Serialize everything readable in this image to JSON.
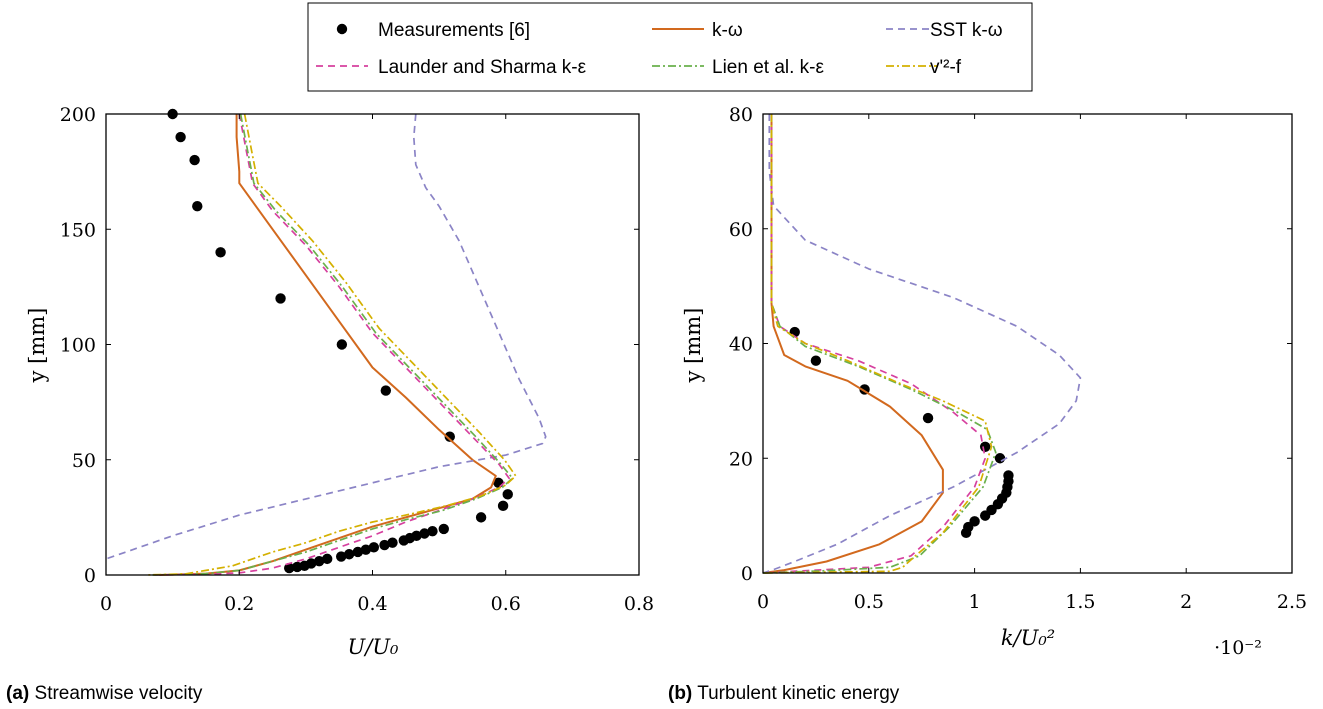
{
  "legend": {
    "entries": [
      {
        "label": "Measurements [6]",
        "style": "marker",
        "color": "#000000"
      },
      {
        "label": "k-ω",
        "style": "solid",
        "color": "#d2691e"
      },
      {
        "label": "SST k-ω",
        "style": "dashed",
        "color": "#8b84c6"
      },
      {
        "label": "Launder and Sharma k-ε",
        "style": "dashed",
        "color": "#d6409f"
      },
      {
        "label": "Lien et al. k-ε",
        "style": "dashdot",
        "color": "#6ab04c"
      },
      {
        "label": "v'²-f",
        "style": "dashdot",
        "color": "#d4b000"
      }
    ]
  },
  "captions": {
    "a": {
      "tag": "(a)",
      "text": "Streamwise velocity"
    },
    "b": {
      "tag": "(b)",
      "text": "Turbulent kinetic energy"
    }
  },
  "chart_data": [
    {
      "type": "line",
      "id": "a",
      "xlabel": "U/U₀",
      "ylabel": "y [mm]",
      "xlim": [
        0,
        0.8
      ],
      "ylim": [
        0,
        200
      ],
      "xticks": [
        "0",
        "0.2",
        "0.4",
        "0.6",
        "0.8"
      ],
      "yticks": [
        "0",
        "50",
        "100",
        "150",
        "200"
      ],
      "grid": false,
      "series": [
        {
          "name": "Measurements [6]",
          "kind": "marker",
          "color": "#000000",
          "points": [
            [
              0.1,
              200
            ],
            [
              0.112,
              190
            ],
            [
              0.133,
              180
            ],
            [
              0.137,
              160
            ],
            [
              0.172,
              140
            ],
            [
              0.262,
              120
            ],
            [
              0.354,
              100
            ],
            [
              0.42,
              80
            ],
            [
              0.516,
              60
            ],
            [
              0.589,
              40
            ],
            [
              0.603,
              35
            ],
            [
              0.596,
              30
            ],
            [
              0.563,
              25
            ],
            [
              0.507,
              20
            ],
            [
              0.49,
              19
            ],
            [
              0.478,
              18
            ],
            [
              0.466,
              17
            ],
            [
              0.456,
              16
            ],
            [
              0.447,
              15
            ],
            [
              0.43,
              14
            ],
            [
              0.418,
              13
            ],
            [
              0.402,
              12
            ],
            [
              0.39,
              11
            ],
            [
              0.378,
              10
            ],
            [
              0.365,
              9
            ],
            [
              0.353,
              8
            ],
            [
              0.332,
              7
            ],
            [
              0.32,
              6
            ],
            [
              0.308,
              5
            ],
            [
              0.298,
              4
            ],
            [
              0.287,
              3.5
            ],
            [
              0.275,
              3
            ]
          ]
        },
        {
          "name": "k-ω",
          "kind": "solid",
          "color": "#d2691e",
          "points": [
            [
              0.196,
              200
            ],
            [
              0.196,
              190
            ],
            [
              0.2,
              175
            ],
            [
              0.2,
              170
            ],
            [
              0.25,
              150
            ],
            [
              0.3,
              130
            ],
            [
              0.35,
              110
            ],
            [
              0.4,
              90
            ],
            [
              0.45,
              77
            ],
            [
              0.5,
              63
            ],
            [
              0.55,
              50
            ],
            [
              0.585,
              43
            ],
            [
              0.578,
              38
            ],
            [
              0.55,
              33
            ],
            [
              0.5,
              29
            ],
            [
              0.45,
              25
            ],
            [
              0.4,
              21
            ],
            [
              0.35,
              16
            ],
            [
              0.3,
              11
            ],
            [
              0.25,
              6
            ],
            [
              0.2,
              2
            ],
            [
              0.15,
              0.6
            ],
            [
              0.08,
              0
            ]
          ]
        },
        {
          "name": "SST k-ω",
          "kind": "dashed",
          "color": "#8b84c6",
          "points": [
            [
              0.465,
              200
            ],
            [
              0.462,
              190
            ],
            [
              0.465,
              178
            ],
            [
              0.48,
              168
            ],
            [
              0.5,
              160
            ],
            [
              0.53,
              145
            ],
            [
              0.56,
              125
            ],
            [
              0.59,
              105
            ],
            [
              0.62,
              85
            ],
            [
              0.65,
              68
            ],
            [
              0.66,
              60
            ],
            [
              0.655,
              57
            ],
            [
              0.6,
              52
            ],
            [
              0.5,
              47
            ],
            [
              0.4,
              40
            ],
            [
              0.3,
              33
            ],
            [
              0.2,
              26
            ],
            [
              0.1,
              17
            ],
            [
              0.02,
              9
            ],
            [
              0,
              7
            ]
          ]
        },
        {
          "name": "Launder and Sharma k-ε",
          "kind": "dashed",
          "color": "#d6409f",
          "points": [
            [
              0.2,
              200
            ],
            [
              0.21,
              185
            ],
            [
              0.22,
              170
            ],
            [
              0.25,
              158
            ],
            [
              0.3,
              143
            ],
            [
              0.35,
              125
            ],
            [
              0.4,
              105
            ],
            [
              0.45,
              90
            ],
            [
              0.5,
              75
            ],
            [
              0.55,
              60
            ],
            [
              0.59,
              48
            ],
            [
              0.605,
              42
            ],
            [
              0.59,
              38
            ],
            [
              0.55,
              33
            ],
            [
              0.5,
              28
            ],
            [
              0.45,
              23
            ],
            [
              0.4,
              17
            ],
            [
              0.35,
              12
            ],
            [
              0.3,
              7
            ],
            [
              0.25,
              3
            ],
            [
              0.2,
              0.9
            ],
            [
              0.15,
              0.3
            ],
            [
              0.07,
              0
            ]
          ]
        },
        {
          "name": "Lien et al. k-ε",
          "kind": "dashdot",
          "color": "#6ab04c",
          "points": [
            [
              0.202,
              200
            ],
            [
              0.212,
              185
            ],
            [
              0.222,
              170
            ],
            [
              0.255,
              158
            ],
            [
              0.305,
              143
            ],
            [
              0.355,
              125
            ],
            [
              0.405,
              105
            ],
            [
              0.455,
              90
            ],
            [
              0.505,
              75
            ],
            [
              0.555,
              60
            ],
            [
              0.593,
              48
            ],
            [
              0.61,
              42
            ],
            [
              0.595,
              38
            ],
            [
              0.555,
              33
            ],
            [
              0.505,
              28
            ],
            [
              0.45,
              24
            ],
            [
              0.4,
              20
            ],
            [
              0.35,
              15
            ],
            [
              0.3,
              10
            ],
            [
              0.25,
              6
            ],
            [
              0.2,
              2
            ],
            [
              0.15,
              0.6
            ],
            [
              0.07,
              0
            ]
          ]
        },
        {
          "name": "v'²-f",
          "kind": "dashdot",
          "color": "#d4b000",
          "points": [
            [
              0.208,
              200
            ],
            [
              0.218,
              185
            ],
            [
              0.228,
              170
            ],
            [
              0.262,
              160
            ],
            [
              0.31,
              145
            ],
            [
              0.36,
              127
            ],
            [
              0.41,
              107
            ],
            [
              0.46,
              92
            ],
            [
              0.51,
              77
            ],
            [
              0.56,
              62
            ],
            [
              0.598,
              50
            ],
            [
              0.615,
              43
            ],
            [
              0.6,
              39
            ],
            [
              0.56,
              34
            ],
            [
              0.51,
              30
            ],
            [
              0.45,
              26
            ],
            [
              0.4,
              23
            ],
            [
              0.35,
              19
            ],
            [
              0.3,
              14
            ],
            [
              0.25,
              10
            ],
            [
              0.19,
              4
            ],
            [
              0.15,
              2
            ],
            [
              0.12,
              0.5
            ],
            [
              0.06,
              0
            ]
          ]
        }
      ]
    },
    {
      "type": "line",
      "id": "b",
      "xlabel": "k/U₀²",
      "ylabel": "y [mm]",
      "multiplier": "·10⁻²",
      "xlim": [
        0,
        2.5
      ],
      "ylim": [
        0,
        80
      ],
      "xticks": [
        "0",
        "0.5",
        "1",
        "1.5",
        "2",
        "2.5"
      ],
      "yticks": [
        "0",
        "20",
        "40",
        "60",
        "80"
      ],
      "grid": false,
      "series": [
        {
          "name": "Measurements [6]",
          "kind": "marker",
          "color": "#000000",
          "points": [
            [
              0.15,
              42
            ],
            [
              0.25,
              37
            ],
            [
              0.48,
              32
            ],
            [
              0.78,
              27
            ],
            [
              1.05,
              22
            ],
            [
              1.12,
              20
            ],
            [
              1.16,
              17
            ],
            [
              1.16,
              16
            ],
            [
              1.155,
              15
            ],
            [
              1.15,
              14
            ],
            [
              1.13,
              13
            ],
            [
              1.11,
              12
            ],
            [
              1.08,
              11
            ],
            [
              1.05,
              10
            ],
            [
              1.0,
              9
            ],
            [
              0.97,
              8
            ],
            [
              0.96,
              7
            ]
          ]
        },
        {
          "name": "k-ω",
          "kind": "solid",
          "color": "#d2691e",
          "points": [
            [
              0.04,
              80
            ],
            [
              0.04,
              60
            ],
            [
              0.04,
              47
            ],
            [
              0.05,
              43
            ],
            [
              0.1,
              38
            ],
            [
              0.2,
              36
            ],
            [
              0.4,
              33.5
            ],
            [
              0.6,
              29
            ],
            [
              0.75,
              24
            ],
            [
              0.85,
              18
            ],
            [
              0.85,
              14
            ],
            [
              0.75,
              9
            ],
            [
              0.55,
              5
            ],
            [
              0.3,
              2
            ],
            [
              0.1,
              0.5
            ],
            [
              0,
              0
            ]
          ]
        },
        {
          "name": "SST k-ω",
          "kind": "dashed",
          "color": "#8b84c6",
          "points": [
            [
              0.03,
              80
            ],
            [
              0.03,
              70
            ],
            [
              0.05,
              64
            ],
            [
              0.2,
              58
            ],
            [
              0.5,
              53
            ],
            [
              0.9,
              48
            ],
            [
              1.2,
              43
            ],
            [
              1.4,
              38
            ],
            [
              1.5,
              34
            ],
            [
              1.48,
              30
            ],
            [
              1.4,
              26
            ],
            [
              1.2,
              21
            ],
            [
              0.9,
              15
            ],
            [
              0.6,
              10
            ],
            [
              0.35,
              5
            ],
            [
              0.15,
              2
            ],
            [
              0.05,
              0.6
            ],
            [
              0,
              0
            ]
          ]
        },
        {
          "name": "Launder and Sharma k-ε",
          "kind": "dashed",
          "color": "#d6409f",
          "points": [
            [
              0.04,
              80
            ],
            [
              0.04,
              60
            ],
            [
              0.04,
              47
            ],
            [
              0.08,
              43
            ],
            [
              0.2,
              40
            ],
            [
              0.45,
              37
            ],
            [
              0.7,
              33
            ],
            [
              0.9,
              28
            ],
            [
              1.03,
              24
            ],
            [
              1.05,
              20
            ],
            [
              1.0,
              15
            ],
            [
              0.85,
              8
            ],
            [
              0.7,
              3
            ],
            [
              0.5,
              1
            ],
            [
              0.2,
              0.4
            ],
            [
              0,
              0
            ]
          ]
        },
        {
          "name": "Lien et al. k-ε",
          "kind": "dashdot",
          "color": "#6ab04c",
          "points": [
            [
              0.04,
              80
            ],
            [
              0.04,
              60
            ],
            [
              0.04,
              47
            ],
            [
              0.08,
              43
            ],
            [
              0.2,
              39.5
            ],
            [
              0.45,
              36
            ],
            [
              0.7,
              32
            ],
            [
              0.92,
              28
            ],
            [
              1.06,
              25
            ],
            [
              1.1,
              21
            ],
            [
              1.04,
              15
            ],
            [
              0.88,
              8
            ],
            [
              0.74,
              3
            ],
            [
              0.6,
              1
            ],
            [
              0.3,
              0.4
            ],
            [
              0,
              0
            ]
          ]
        },
        {
          "name": "v'²-f",
          "kind": "dashdot",
          "color": "#d4b000",
          "points": [
            [
              0.04,
              80
            ],
            [
              0.04,
              60
            ],
            [
              0.04,
              47
            ],
            [
              0.07,
              43
            ],
            [
              0.2,
              40
            ],
            [
              0.4,
              37
            ],
            [
              0.65,
              33
            ],
            [
              0.85,
              30
            ],
            [
              1.05,
              26.5
            ],
            [
              1.08,
              22
            ],
            [
              1.02,
              15
            ],
            [
              0.85,
              7
            ],
            [
              0.72,
              3
            ],
            [
              0.66,
              1
            ],
            [
              0.6,
              0.3
            ],
            [
              0,
              0
            ]
          ]
        }
      ]
    }
  ]
}
